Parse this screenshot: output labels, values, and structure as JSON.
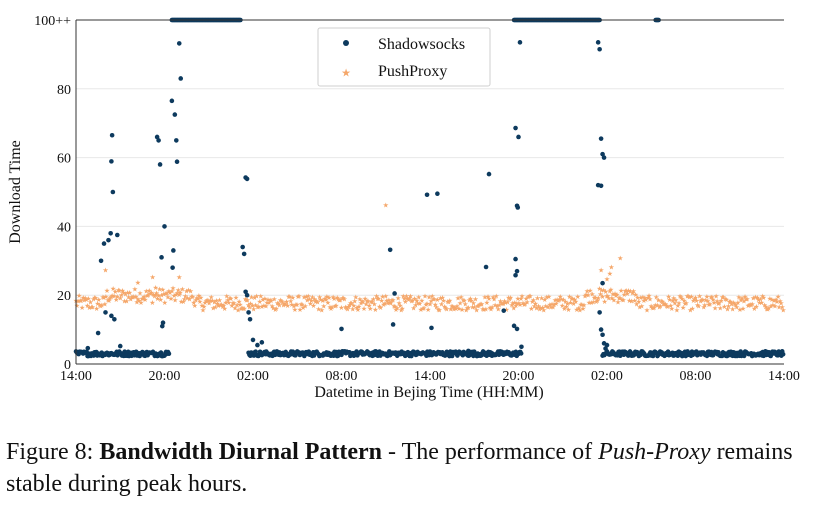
{
  "chart_data": {
    "type": "scatter",
    "xlabel": "Datetime in Bejing Time (HH:MM)",
    "ylabel": "Download Time",
    "x_tick_labels": [
      "14:00",
      "20:00",
      "02:00",
      "08:00",
      "14:00",
      "20:00",
      "02:00",
      "08:00",
      "14:00"
    ],
    "y_tick_labels": [
      "0",
      "20",
      "40",
      "60",
      "80",
      "100++"
    ],
    "y_ticks": [
      0,
      20,
      40,
      60,
      80,
      100
    ],
    "xlim_hours": [
      0,
      48
    ],
    "ylim": [
      0,
      100
    ],
    "grid": "horizontal",
    "legend_position": "top-center",
    "series": [
      {
        "name": "Shadowsocks",
        "color": "#0d3a5e",
        "marker": "dot",
        "baseline": 3,
        "baseline_segments": [
          [
            0,
            6.3
          ],
          [
            11.7,
            30.2
          ],
          [
            35.7,
            48
          ]
        ],
        "points": [
          [
            0.3,
            3.5
          ],
          [
            0.8,
            4.6
          ],
          [
            1.5,
            9
          ],
          [
            1.7,
            30
          ],
          [
            1.9,
            35
          ],
          [
            2.0,
            15
          ],
          [
            2.2,
            36
          ],
          [
            2.35,
            38
          ],
          [
            2.4,
            58.9
          ],
          [
            2.45,
            66.5
          ],
          [
            2.5,
            50
          ],
          [
            2.4,
            14
          ],
          [
            2.6,
            13
          ],
          [
            2.8,
            37.5
          ],
          [
            3.0,
            5.2
          ],
          [
            5.5,
            66
          ],
          [
            5.6,
            65
          ],
          [
            5.7,
            58
          ],
          [
            5.8,
            31
          ],
          [
            5.9,
            12
          ],
          [
            5.85,
            11
          ],
          [
            6.0,
            40
          ],
          [
            6.1,
            3.5
          ],
          [
            6.5,
            76.5
          ],
          [
            6.6,
            33
          ],
          [
            6.55,
            28
          ],
          [
            6.7,
            72.5
          ],
          [
            6.8,
            65
          ],
          [
            6.85,
            58.8
          ],
          [
            7.0,
            93.2
          ],
          [
            7.1,
            83
          ],
          [
            11.5,
            54.2
          ],
          [
            11.6,
            53.8
          ],
          [
            11.3,
            34
          ],
          [
            11.4,
            32
          ],
          [
            11.5,
            21
          ],
          [
            11.6,
            20
          ],
          [
            11.7,
            15
          ],
          [
            11.8,
            13
          ],
          [
            12.0,
            7
          ],
          [
            12.3,
            5.5
          ],
          [
            12.6,
            6.3
          ],
          [
            18.0,
            10.2
          ],
          [
            21.3,
            33.2
          ],
          [
            21.5,
            11.5
          ],
          [
            21.6,
            20.5
          ],
          [
            23.8,
            49.2
          ],
          [
            24.5,
            49.5
          ],
          [
            24.1,
            10.5
          ],
          [
            26.6,
            3.8
          ],
          [
            27.8,
            28.2
          ],
          [
            28.0,
            55.2
          ],
          [
            29.0,
            15.5
          ],
          [
            29.8,
            68.6
          ],
          [
            30.0,
            66
          ],
          [
            29.9,
            46
          ],
          [
            29.95,
            45.5
          ],
          [
            29.8,
            30.5
          ],
          [
            29.9,
            27
          ],
          [
            29.8,
            25.8
          ],
          [
            29.7,
            11.1
          ],
          [
            29.9,
            10.2
          ],
          [
            30.2,
            5
          ],
          [
            30.1,
            93.5
          ],
          [
            35.4,
            93.5
          ],
          [
            35.5,
            91.5
          ],
          [
            35.6,
            65.5
          ],
          [
            35.7,
            61
          ],
          [
            35.8,
            60
          ],
          [
            35.4,
            52
          ],
          [
            35.6,
            51.8
          ],
          [
            35.7,
            23.5
          ],
          [
            35.5,
            15
          ],
          [
            35.6,
            10
          ],
          [
            35.7,
            8.5
          ],
          [
            35.8,
            6
          ],
          [
            36.0,
            5.5
          ],
          [
            35.9,
            4.5
          ]
        ],
        "saturated_100_segments": [
          [
            6.5,
            11.2
          ],
          [
            29.7,
            35.5
          ],
          [
            39.3,
            39.5
          ]
        ]
      },
      {
        "name": "PushProxy",
        "color": "#f5a76a",
        "marker": "star",
        "typical_value": 17.5,
        "coverage_hours": [
          0,
          48
        ],
        "points": [
          [
            21.0,
            46
          ],
          [
            2.0,
            27
          ],
          [
            5.2,
            25
          ],
          [
            5.4,
            22
          ],
          [
            35.6,
            27
          ],
          [
            36.3,
            28
          ],
          [
            36.9,
            30.5
          ],
          [
            36.0,
            24.5
          ],
          [
            36.2,
            26
          ],
          [
            4.2,
            23.5
          ],
          [
            7.0,
            25
          ]
        ]
      }
    ]
  },
  "caption": {
    "prefix": "Figure 8: ",
    "bold": "Bandwidth Diurnal Pattern",
    "middle": " - The performance of ",
    "italic": "Push-Proxy",
    "suffix": " remains stable during peak hours."
  }
}
